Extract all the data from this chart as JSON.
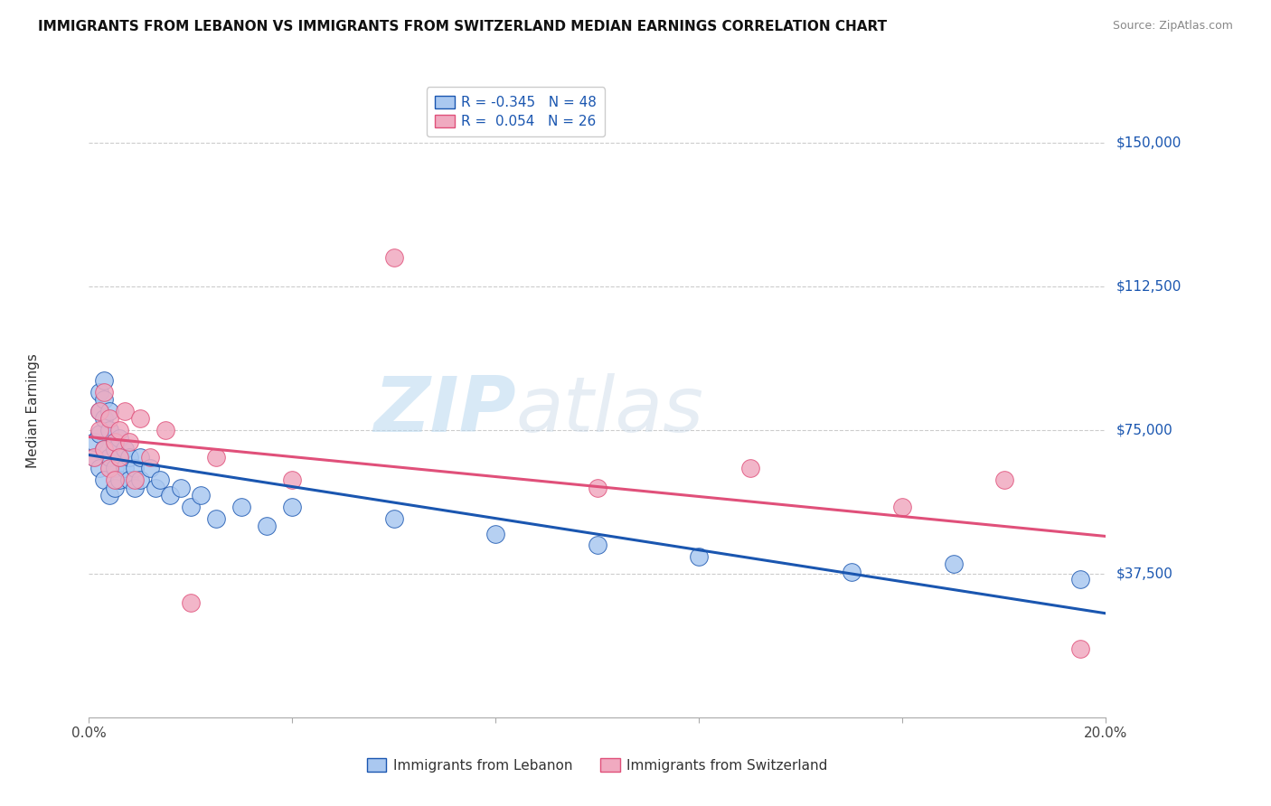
{
  "title": "IMMIGRANTS FROM LEBANON VS IMMIGRANTS FROM SWITZERLAND MEDIAN EARNINGS CORRELATION CHART",
  "source": "Source: ZipAtlas.com",
  "ylabel": "Median Earnings",
  "ytick_labels": [
    "$37,500",
    "$75,000",
    "$112,500",
    "$150,000"
  ],
  "ytick_values": [
    37500,
    75000,
    112500,
    150000
  ],
  "ylim": [
    0,
    160000
  ],
  "xlim": [
    0.0,
    0.2
  ],
  "watermark_part1": "ZIP",
  "watermark_part2": "atlas",
  "legend": {
    "lebanon_R": "-0.345",
    "lebanon_N": "48",
    "switzerland_R": "0.054",
    "switzerland_N": "26"
  },
  "lebanon_color": "#aac8f0",
  "switzerland_color": "#f0aac0",
  "lebanon_trend_color": "#1a56b0",
  "switzerland_trend_color": "#e0507a",
  "background_color": "#ffffff",
  "lebanon_x": [
    0.001,
    0.001,
    0.002,
    0.002,
    0.002,
    0.002,
    0.003,
    0.003,
    0.003,
    0.003,
    0.003,
    0.004,
    0.004,
    0.004,
    0.004,
    0.005,
    0.005,
    0.005,
    0.005,
    0.006,
    0.006,
    0.006,
    0.007,
    0.007,
    0.008,
    0.008,
    0.009,
    0.009,
    0.01,
    0.01,
    0.012,
    0.013,
    0.014,
    0.016,
    0.018,
    0.02,
    0.022,
    0.025,
    0.03,
    0.035,
    0.04,
    0.06,
    0.08,
    0.1,
    0.12,
    0.15,
    0.17,
    0.195
  ],
  "lebanon_y": [
    68000,
    72000,
    65000,
    74000,
    80000,
    85000,
    70000,
    78000,
    83000,
    88000,
    62000,
    75000,
    68000,
    80000,
    58000,
    72000,
    65000,
    70000,
    60000,
    68000,
    73000,
    62000,
    65000,
    70000,
    68000,
    62000,
    65000,
    60000,
    62000,
    68000,
    65000,
    60000,
    62000,
    58000,
    60000,
    55000,
    58000,
    52000,
    55000,
    50000,
    55000,
    52000,
    48000,
    45000,
    42000,
    38000,
    40000,
    36000
  ],
  "switzerland_x": [
    0.001,
    0.002,
    0.002,
    0.003,
    0.003,
    0.004,
    0.004,
    0.005,
    0.005,
    0.006,
    0.006,
    0.007,
    0.008,
    0.009,
    0.01,
    0.012,
    0.015,
    0.02,
    0.025,
    0.04,
    0.06,
    0.1,
    0.13,
    0.16,
    0.18,
    0.195
  ],
  "switzerland_y": [
    68000,
    75000,
    80000,
    70000,
    85000,
    78000,
    65000,
    72000,
    62000,
    75000,
    68000,
    80000,
    72000,
    62000,
    78000,
    68000,
    75000,
    30000,
    68000,
    62000,
    120000,
    60000,
    65000,
    55000,
    62000,
    18000
  ]
}
